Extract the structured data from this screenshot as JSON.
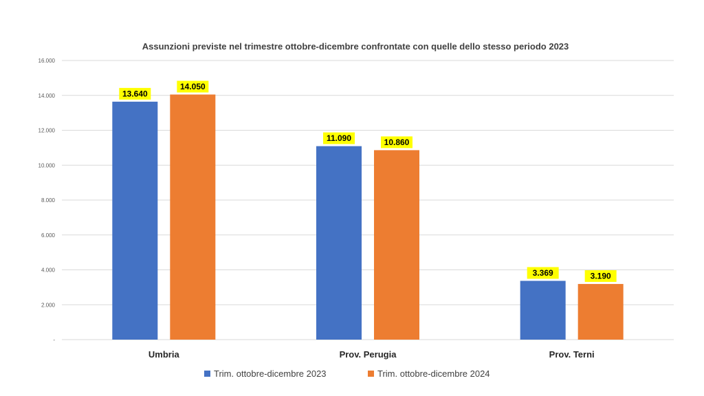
{
  "chart_data": {
    "type": "bar",
    "title": "Assunzioni previste nel trimestre ottobre-dicembre confrontate con quelle dello stesso periodo 2023",
    "categories": [
      "Umbria",
      "Prov. Perugia",
      "Prov. Terni"
    ],
    "series": [
      {
        "name": "Trim. ottobre-dicembre 2023",
        "values": [
          13640,
          11090,
          3369
        ],
        "labels": [
          "13.640",
          "11.090",
          "3.369"
        ],
        "color": "#4472c4"
      },
      {
        "name": "Trim. ottobre-dicembre 2024",
        "values": [
          14050,
          10860,
          3190
        ],
        "labels": [
          "14.050",
          "10.860",
          "3.190"
        ],
        "color": "#ed7d31"
      }
    ],
    "ylim": [
      0,
      16000
    ],
    "yticks": [
      0,
      2000,
      4000,
      6000,
      8000,
      10000,
      12000,
      14000,
      16000
    ],
    "ytick_labels": [
      "-",
      "2.000",
      "4.000",
      "6.000",
      "8.000",
      "10.000",
      "12.000",
      "14.000",
      "16.000"
    ],
    "data_label_highlight": "#ffff00",
    "grid": true,
    "legend": "bottom"
  }
}
